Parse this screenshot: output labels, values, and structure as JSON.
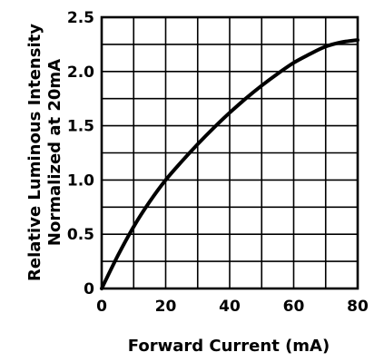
{
  "chart_data": {
    "type": "line",
    "title": "",
    "xlabel": "Forward Current (mA)",
    "ylabel_lines": [
      "Relative Luminous Intensity",
      "Normalized at 20mA"
    ],
    "xlim": [
      0,
      80
    ],
    "ylim": [
      0,
      2.5
    ],
    "grid": true,
    "x_ticks": [
      "0",
      "20",
      "40",
      "60",
      "80"
    ],
    "y_ticks": [
      "0",
      "0.5",
      "1.0",
      "1.5",
      "2.0",
      "2.5"
    ],
    "series": [
      {
        "color": "#000000",
        "x": [
          0,
          5,
          10,
          15,
          20,
          25,
          30,
          35,
          40,
          45,
          50,
          55,
          60,
          65,
          70,
          75,
          80
        ],
        "y": [
          0,
          0.3,
          0.57,
          0.8,
          1.0,
          1.17,
          1.33,
          1.48,
          1.62,
          1.75,
          1.87,
          1.98,
          2.08,
          2.16,
          2.23,
          2.27,
          2.29
        ]
      }
    ]
  }
}
